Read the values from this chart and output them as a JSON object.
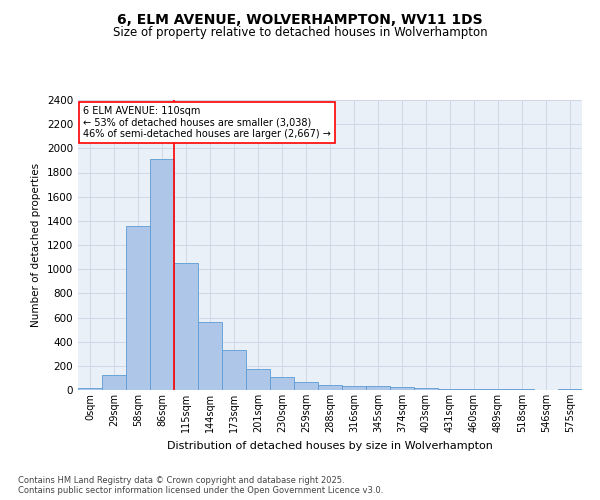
{
  "title": "6, ELM AVENUE, WOLVERHAMPTON, WV11 1DS",
  "subtitle": "Size of property relative to detached houses in Wolverhampton",
  "xlabel": "Distribution of detached houses by size in Wolverhampton",
  "ylabel": "Number of detached properties",
  "footnote": "Contains HM Land Registry data © Crown copyright and database right 2025.\nContains public sector information licensed under the Open Government Licence v3.0.",
  "bin_labels": [
    "0sqm",
    "29sqm",
    "58sqm",
    "86sqm",
    "115sqm",
    "144sqm",
    "173sqm",
    "201sqm",
    "230sqm",
    "259sqm",
    "288sqm",
    "316sqm",
    "345sqm",
    "374sqm",
    "403sqm",
    "431sqm",
    "460sqm",
    "489sqm",
    "518sqm",
    "546sqm",
    "575sqm"
  ],
  "bar_heights": [
    15,
    125,
    1360,
    1910,
    1055,
    560,
    335,
    170,
    110,
    65,
    40,
    35,
    30,
    25,
    15,
    5,
    5,
    5,
    5,
    0,
    10
  ],
  "bar_color": "#aec6e8",
  "bar_edge_color": "#5b9bd5",
  "grid_color": "#d0d8e8",
  "background_color": "#eaf0f8",
  "vline_x": 3.5,
  "vline_color": "red",
  "annotation_text": "6 ELM AVENUE: 110sqm\n← 53% of detached houses are smaller (3,038)\n46% of semi-detached houses are larger (2,667) →",
  "annotation_box_color": "red",
  "ylim": [
    0,
    2400
  ],
  "yticks": [
    0,
    200,
    400,
    600,
    800,
    1000,
    1200,
    1400,
    1600,
    1800,
    2000,
    2200,
    2400
  ]
}
